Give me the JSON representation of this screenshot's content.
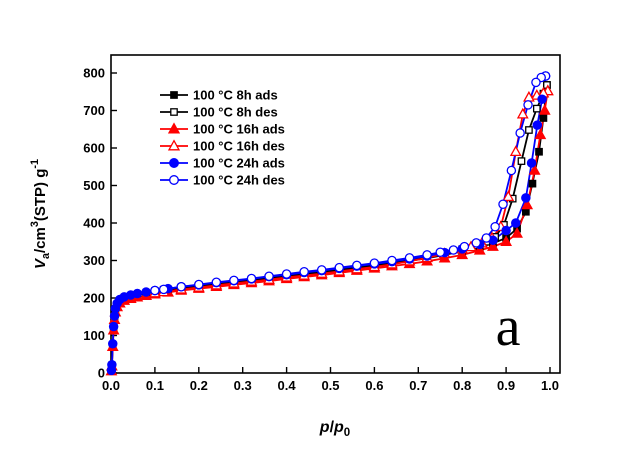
{
  "figure": {
    "background": "#ffffff",
    "panel_label": "a"
  },
  "chart_data": {
    "type": "line",
    "title": "",
    "xlabel_segments": [
      {
        "t": "p",
        "style": "italic"
      },
      {
        "t": "/",
        "style": "normal"
      },
      {
        "t": "p",
        "style": "italic"
      },
      {
        "t": "0",
        "style": "sub"
      }
    ],
    "ylabel_segments": [
      {
        "t": "V",
        "style": "italic"
      },
      {
        "t": "a",
        "style": "sub"
      },
      {
        "t": "/cm",
        "style": "normal"
      },
      {
        "t": "3",
        "style": "sup"
      },
      {
        "t": "(STP) g",
        "style": "normal"
      },
      {
        "t": "-1",
        "style": "sup"
      }
    ],
    "xlim": [
      0,
      1.02
    ],
    "ylim": [
      0,
      850
    ],
    "grid": false,
    "legend_position": "upper-left-inside",
    "xticks": {
      "values": [
        0.0,
        0.1,
        0.2,
        0.3,
        0.4,
        0.5,
        0.6,
        0.7,
        0.8,
        0.9,
        1.0
      ],
      "labels": [
        "0.0",
        "0.1",
        "0.2",
        "0.3",
        "0.4",
        "0.5",
        "0.6",
        "0.7",
        "0.8",
        "0.9",
        "1.0"
      ]
    },
    "yticks": {
      "values": [
        0,
        100,
        200,
        300,
        400,
        500,
        600,
        700,
        800
      ],
      "labels": [
        "0",
        "100",
        "200",
        "300",
        "400",
        "500",
        "600",
        "700",
        "800"
      ]
    },
    "colors": {
      "series_8h": "#000000",
      "series_16h": "#ff0000",
      "series_24h": "#0000ff",
      "open_fill": "#ffffff"
    },
    "series": [
      {
        "name": "100 °C 8h ads",
        "color": "#000000",
        "marker": "square",
        "fill": "solid",
        "points": [
          [
            0.001,
            6
          ],
          [
            0.002,
            20
          ],
          [
            0.004,
            75
          ],
          [
            0.006,
            120
          ],
          [
            0.008,
            148
          ],
          [
            0.01,
            168
          ],
          [
            0.014,
            182
          ],
          [
            0.02,
            192
          ],
          [
            0.03,
            199
          ],
          [
            0.045,
            204
          ],
          [
            0.06,
            208
          ],
          [
            0.08,
            212
          ],
          [
            0.1,
            216
          ],
          [
            0.13,
            221
          ],
          [
            0.16,
            226
          ],
          [
            0.2,
            231
          ],
          [
            0.24,
            237
          ],
          [
            0.28,
            242
          ],
          [
            0.32,
            247
          ],
          [
            0.36,
            252
          ],
          [
            0.4,
            258
          ],
          [
            0.44,
            263
          ],
          [
            0.48,
            268
          ],
          [
            0.52,
            274
          ],
          [
            0.56,
            280
          ],
          [
            0.6,
            286
          ],
          [
            0.64,
            292
          ],
          [
            0.68,
            299
          ],
          [
            0.72,
            306
          ],
          [
            0.76,
            315
          ],
          [
            0.8,
            325
          ],
          [
            0.84,
            336
          ],
          [
            0.87,
            346
          ],
          [
            0.9,
            360
          ],
          [
            0.925,
            385
          ],
          [
            0.945,
            430
          ],
          [
            0.96,
            505
          ],
          [
            0.975,
            590
          ],
          [
            0.985,
            680
          ],
          [
            0.993,
            768
          ]
        ]
      },
      {
        "name": "100 °C 8h des",
        "color": "#000000",
        "marker": "square",
        "fill": "open",
        "points": [
          [
            0.993,
            768
          ],
          [
            0.985,
            745
          ],
          [
            0.97,
            705
          ],
          [
            0.952,
            648
          ],
          [
            0.935,
            565
          ],
          [
            0.915,
            465
          ],
          [
            0.895,
            395
          ],
          [
            0.875,
            363
          ],
          [
            0.855,
            350
          ],
          [
            0.83,
            340
          ],
          [
            0.8,
            330
          ],
          [
            0.76,
            319
          ],
          [
            0.72,
            309
          ],
          [
            0.68,
            301
          ],
          [
            0.64,
            294
          ],
          [
            0.6,
            288
          ],
          [
            0.56,
            282
          ],
          [
            0.52,
            276
          ],
          [
            0.48,
            270
          ],
          [
            0.44,
            265
          ],
          [
            0.4,
            260
          ],
          [
            0.36,
            254
          ],
          [
            0.32,
            249
          ],
          [
            0.28,
            244
          ],
          [
            0.24,
            239
          ],
          [
            0.2,
            233
          ],
          [
            0.16,
            228
          ],
          [
            0.12,
            222
          ],
          [
            0.1,
            218
          ]
        ]
      },
      {
        "name": "100 °C 16h ads",
        "color": "#ff0000",
        "marker": "triangle",
        "fill": "solid",
        "points": [
          [
            0.001,
            5
          ],
          [
            0.002,
            18
          ],
          [
            0.004,
            70
          ],
          [
            0.006,
            114
          ],
          [
            0.008,
            142
          ],
          [
            0.01,
            162
          ],
          [
            0.014,
            176
          ],
          [
            0.02,
            186
          ],
          [
            0.03,
            193
          ],
          [
            0.045,
            198
          ],
          [
            0.06,
            202
          ],
          [
            0.08,
            206
          ],
          [
            0.1,
            210
          ],
          [
            0.13,
            215
          ],
          [
            0.16,
            220
          ],
          [
            0.2,
            225
          ],
          [
            0.24,
            230
          ],
          [
            0.28,
            235
          ],
          [
            0.32,
            240
          ],
          [
            0.36,
            245
          ],
          [
            0.4,
            251
          ],
          [
            0.44,
            256
          ],
          [
            0.48,
            261
          ],
          [
            0.52,
            267
          ],
          [
            0.56,
            273
          ],
          [
            0.6,
            279
          ],
          [
            0.64,
            285
          ],
          [
            0.68,
            291
          ],
          [
            0.72,
            298
          ],
          [
            0.76,
            306
          ],
          [
            0.8,
            315
          ],
          [
            0.84,
            327
          ],
          [
            0.87,
            337
          ],
          [
            0.9,
            350
          ],
          [
            0.925,
            372
          ],
          [
            0.948,
            448
          ],
          [
            0.965,
            540
          ],
          [
            0.978,
            635
          ],
          [
            0.988,
            700
          ],
          [
            0.995,
            752
          ]
        ]
      },
      {
        "name": "100 °C 16h des",
        "color": "#ff0000",
        "marker": "triangle",
        "fill": "open",
        "points": [
          [
            0.995,
            752
          ],
          [
            0.985,
            746
          ],
          [
            0.97,
            740
          ],
          [
            0.952,
            735
          ],
          [
            0.938,
            690
          ],
          [
            0.922,
            590
          ],
          [
            0.905,
            470
          ],
          [
            0.888,
            390
          ],
          [
            0.868,
            360
          ],
          [
            0.845,
            346
          ],
          [
            0.82,
            336
          ],
          [
            0.8,
            330
          ],
          [
            0.76,
            318
          ],
          [
            0.72,
            307
          ],
          [
            0.68,
            298
          ],
          [
            0.64,
            290
          ],
          [
            0.6,
            283
          ],
          [
            0.56,
            277
          ],
          [
            0.52,
            271
          ],
          [
            0.48,
            265
          ],
          [
            0.44,
            260
          ],
          [
            0.4,
            255
          ],
          [
            0.36,
            249
          ],
          [
            0.32,
            244
          ],
          [
            0.28,
            239
          ],
          [
            0.24,
            234
          ],
          [
            0.2,
            228
          ],
          [
            0.16,
            223
          ],
          [
            0.12,
            216
          ],
          [
            0.1,
            213
          ]
        ]
      },
      {
        "name": "100 °C 24h ads",
        "color": "#0000ff",
        "marker": "circle",
        "fill": "solid",
        "points": [
          [
            0.001,
            7
          ],
          [
            0.002,
            22
          ],
          [
            0.004,
            78
          ],
          [
            0.006,
            124
          ],
          [
            0.008,
            152
          ],
          [
            0.01,
            172
          ],
          [
            0.014,
            186
          ],
          [
            0.02,
            196
          ],
          [
            0.03,
            203
          ],
          [
            0.045,
            208
          ],
          [
            0.06,
            212
          ],
          [
            0.08,
            216
          ],
          [
            0.1,
            220
          ],
          [
            0.13,
            225
          ],
          [
            0.16,
            230
          ],
          [
            0.2,
            235
          ],
          [
            0.24,
            241
          ],
          [
            0.28,
            246
          ],
          [
            0.32,
            251
          ],
          [
            0.36,
            257
          ],
          [
            0.4,
            262
          ],
          [
            0.44,
            268
          ],
          [
            0.48,
            273
          ],
          [
            0.52,
            279
          ],
          [
            0.56,
            285
          ],
          [
            0.6,
            291
          ],
          [
            0.64,
            297
          ],
          [
            0.68,
            304
          ],
          [
            0.72,
            312
          ],
          [
            0.76,
            321
          ],
          [
            0.8,
            331
          ],
          [
            0.84,
            343
          ],
          [
            0.87,
            354
          ],
          [
            0.9,
            380
          ],
          [
            0.922,
            400
          ],
          [
            0.945,
            467
          ],
          [
            0.958,
            560
          ],
          [
            0.971,
            661
          ],
          [
            0.982,
            730
          ],
          [
            0.99,
            792
          ]
        ]
      },
      {
        "name": "100 °C 24h des",
        "color": "#0000ff",
        "marker": "circle",
        "fill": "open",
        "points": [
          [
            0.99,
            792
          ],
          [
            0.98,
            788
          ],
          [
            0.968,
            775
          ],
          [
            0.95,
            715
          ],
          [
            0.932,
            640
          ],
          [
            0.912,
            540
          ],
          [
            0.893,
            450
          ],
          [
            0.875,
            390
          ],
          [
            0.855,
            360
          ],
          [
            0.832,
            347
          ],
          [
            0.805,
            337
          ],
          [
            0.78,
            328
          ],
          [
            0.75,
            322
          ],
          [
            0.72,
            315
          ],
          [
            0.68,
            307
          ],
          [
            0.64,
            300
          ],
          [
            0.6,
            293
          ],
          [
            0.56,
            287
          ],
          [
            0.52,
            281
          ],
          [
            0.48,
            275
          ],
          [
            0.44,
            270
          ],
          [
            0.4,
            264
          ],
          [
            0.36,
            258
          ],
          [
            0.32,
            252
          ],
          [
            0.28,
            247
          ],
          [
            0.24,
            242
          ],
          [
            0.2,
            236
          ],
          [
            0.16,
            230
          ],
          [
            0.12,
            223
          ],
          [
            0.1,
            220
          ]
        ]
      }
    ]
  }
}
